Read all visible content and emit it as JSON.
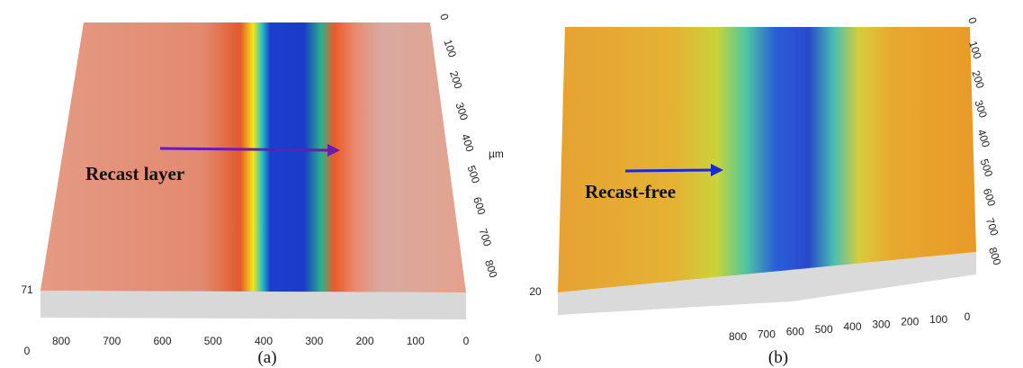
{
  "panels": [
    {
      "caption": "(a)",
      "annotation": "Recast layer",
      "x_ticks": [
        "800",
        "700",
        "600",
        "500",
        "400",
        "300",
        "200",
        "100",
        "0"
      ],
      "y_ticks": [
        "0",
        "100",
        "200",
        "300",
        "400",
        "500",
        "600",
        "700",
        "800"
      ],
      "y_unit": "µm",
      "z_ticks": [
        "71",
        "0"
      ]
    },
    {
      "caption": "(b)",
      "annotation": "Recast-free",
      "x_ticks": [
        "800",
        "700",
        "600",
        "500",
        "400",
        "300",
        "200",
        "100",
        "0"
      ],
      "y_ticks": [
        "0",
        "100",
        "200",
        "300",
        "400",
        "500",
        "600",
        "700",
        "800"
      ],
      "z_ticks": [
        "20",
        "0"
      ]
    }
  ]
}
